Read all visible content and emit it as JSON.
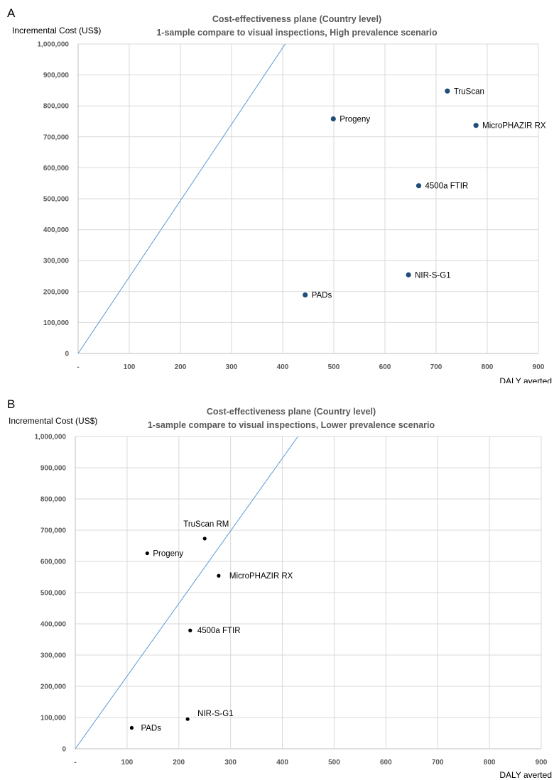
{
  "chart_data": [
    {
      "type": "scatter",
      "panel": "A",
      "title": "Cost-effectiveness plane (Country level)",
      "subtitle": "1-sample compare to visual inspections, High prevalence scenario",
      "ylabel": "Incremental Cost (US$)",
      "xlabel": "DALY averted",
      "xlim": [
        0,
        900
      ],
      "ylim": [
        0,
        1000000
      ],
      "x_ticks": [
        "-",
        "100",
        "200",
        "300",
        "400",
        "500",
        "600",
        "700",
        "800",
        "900"
      ],
      "y_ticks": [
        "0",
        "100,000",
        "200,000",
        "300,000",
        "400,000",
        "500,000",
        "600,000",
        "700,000",
        "800,000",
        "900,000",
        "1,000,000"
      ],
      "grid": true,
      "point_color": "#1f4e79",
      "threshold_line": {
        "x": [
          0,
          405
        ],
        "y": [
          0,
          1000000
        ]
      },
      "points": [
        {
          "label": "TruScan",
          "x": 722,
          "y": 848000
        },
        {
          "label": "Progeny",
          "x": 499,
          "y": 758000
        },
        {
          "label": "MicroPHAZIR RX",
          "x": 778,
          "y": 737000
        },
        {
          "label": "4500a FTIR",
          "x": 666,
          "y": 542000
        },
        {
          "label": "NIR-S-G1",
          "x": 646,
          "y": 254000
        },
        {
          "label": "PADs",
          "x": 444,
          "y": 189000
        }
      ]
    },
    {
      "type": "scatter",
      "panel": "B",
      "title": "Cost-effectiveness plane (Country level)",
      "subtitle": "1-sample compare to visual inspections, Lower prevalence scenario",
      "ylabel": "Incremental Cost (US$)",
      "xlabel": "DALY averted",
      "xlim": [
        0,
        900
      ],
      "ylim": [
        0,
        1000000
      ],
      "x_ticks": [
        "-",
        "100",
        "200",
        "300",
        "400",
        "500",
        "600",
        "700",
        "800",
        "900"
      ],
      "y_ticks": [
        "0",
        "100,000",
        "200,000",
        "300,000",
        "400,000",
        "500,000",
        "600,000",
        "700,000",
        "800,000",
        "900,000",
        "1,000,000"
      ],
      "grid": true,
      "point_color": "#000000",
      "threshold_line": {
        "x": [
          0,
          430
        ],
        "y": [
          0,
          1000000
        ]
      },
      "points": [
        {
          "label": "TruScan RM",
          "x": 250,
          "y": 673000
        },
        {
          "label": "Progeny",
          "x": 139,
          "y": 626000
        },
        {
          "label": "MicroPHAZIR RX",
          "x": 277,
          "y": 554000
        },
        {
          "label": "4500a FTIR",
          "x": 222,
          "y": 379000
        },
        {
          "label": "NIR-S-G1",
          "x": 217,
          "y": 95000
        },
        {
          "label": "PADs",
          "x": 109,
          "y": 67000
        }
      ]
    }
  ]
}
